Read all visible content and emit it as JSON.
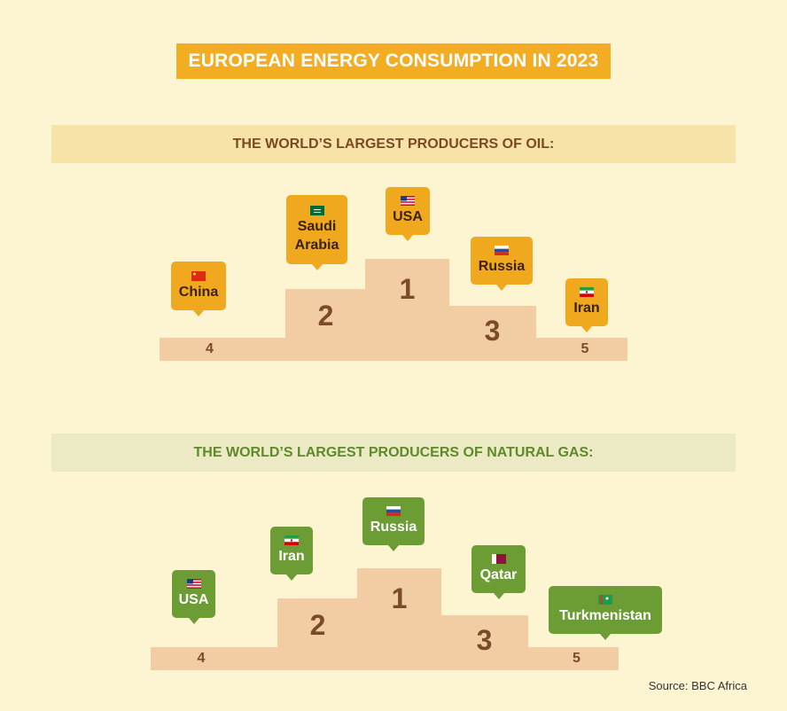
{
  "title": "EUROPEAN ENERGY CONSUMPTION IN 2023",
  "oil": {
    "heading": "THE WORLD’S LARGEST PRODUCERS OF OIL:",
    "ranks": {
      "r1": "1",
      "r2": "2",
      "r3": "3",
      "r4": "4",
      "r5": "5"
    },
    "producers": {
      "first": {
        "line1": "USA",
        "flag": "usa-flag-icon"
      },
      "second": {
        "line1": "Saudi",
        "line2": "Arabia",
        "flag": "saudi-arabia-flag-icon"
      },
      "third": {
        "line1": "Russia",
        "flag": "russia-flag-icon"
      },
      "fourth": {
        "line1": "China",
        "flag": "china-flag-icon"
      },
      "fifth": {
        "line1": "Iran",
        "flag": "iran-flag-icon"
      }
    }
  },
  "gas": {
    "heading": "THE WORLD’S LARGEST PRODUCERS OF NATURAL GAS:",
    "ranks": {
      "r1": "1",
      "r2": "2",
      "r3": "3",
      "r4": "4",
      "r5": "5"
    },
    "producers": {
      "first": {
        "line1": "Russia",
        "flag": "russia-flag-icon"
      },
      "second": {
        "line1": "Iran",
        "flag": "iran-flag-icon"
      },
      "third": {
        "line1": "Qatar",
        "flag": "qatar-flag-icon"
      },
      "fourth": {
        "line1": "USA",
        "flag": "usa-flag-icon"
      },
      "fifth": {
        "line1": "Turkmenistan",
        "flag": "turkmenistan-flag-icon"
      }
    }
  },
  "source": "Source: BBC Africa",
  "colors": {
    "background": "#fdf5d1",
    "accent_orange": "#f3ad23",
    "gas_green": "#6b9d34",
    "podium": "#f2cda4",
    "oil_text": "#7a4a24"
  }
}
